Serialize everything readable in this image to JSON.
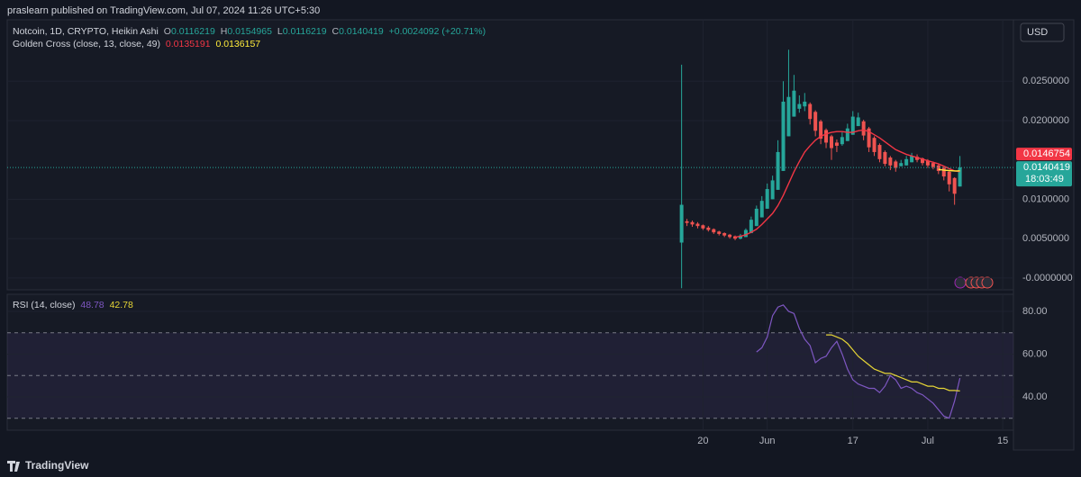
{
  "header": "praslearn published on TradingView.com, Jul 07, 2024 11:26 UTC+5:30",
  "currency": "USD",
  "footer": "TradingView",
  "chart_data": [
    {
      "type": "candlestick",
      "title": "Notcoin, 1D, CRYPTO, Heikin Ashi",
      "ohlc_labels": [
        "O",
        "H",
        "L",
        "C"
      ],
      "change": "+0.0024092 (+20.71%)",
      "up_color": "#26a69a",
      "down_color": "#ef5350",
      "x": [
        "2024-05-16",
        "2024-05-17",
        "2024-05-18",
        "2024-05-19",
        "2024-05-20",
        "2024-05-21",
        "2024-05-22",
        "2024-05-23",
        "2024-05-24",
        "2024-05-25",
        "2024-05-26",
        "2024-05-27",
        "2024-05-28",
        "2024-05-29",
        "2024-05-30",
        "2024-05-31",
        "2024-06-01",
        "2024-06-02",
        "2024-06-03",
        "2024-06-04",
        "2024-06-05",
        "2024-06-06",
        "2024-06-07",
        "2024-06-08",
        "2024-06-09",
        "2024-06-10",
        "2024-06-11",
        "2024-06-12",
        "2024-06-13",
        "2024-06-14",
        "2024-06-15",
        "2024-06-16",
        "2024-06-17",
        "2024-06-18",
        "2024-06-19",
        "2024-06-20",
        "2024-06-21",
        "2024-06-22",
        "2024-06-23",
        "2024-06-24",
        "2024-06-25",
        "2024-06-26",
        "2024-06-27",
        "2024-06-28",
        "2024-06-29",
        "2024-06-30",
        "2024-07-01",
        "2024-07-02",
        "2024-07-03",
        "2024-07-04",
        "2024-07-05",
        "2024-07-06",
        "2024-07-07"
      ],
      "open": [
        0.0045,
        0.0072,
        0.0071,
        0.0069,
        0.0067,
        0.0064,
        0.0062,
        0.0059,
        0.0057,
        0.0055,
        0.0053,
        0.005,
        0.0052,
        0.0057,
        0.0066,
        0.0077,
        0.0088,
        0.01,
        0.0112,
        0.0136,
        0.018,
        0.0205,
        0.0215,
        0.0218,
        0.0221,
        0.0211,
        0.0199,
        0.0188,
        0.018,
        0.0172,
        0.017,
        0.0174,
        0.0182,
        0.0193,
        0.0199,
        0.019,
        0.0178,
        0.0169,
        0.016,
        0.0153,
        0.0148,
        0.0142,
        0.0143,
        0.0147,
        0.0154,
        0.0152,
        0.0149,
        0.0146,
        0.0143,
        0.014,
        0.0135,
        0.0127,
        0.0116219
      ],
      "high": [
        0.0271,
        0.0075,
        0.0073,
        0.0071,
        0.0068,
        0.0066,
        0.0063,
        0.006,
        0.0058,
        0.0056,
        0.0054,
        0.0056,
        0.0063,
        0.0078,
        0.0092,
        0.0104,
        0.012,
        0.013,
        0.0175,
        0.025,
        0.029,
        0.0258,
        0.0232,
        0.0235,
        0.0223,
        0.0213,
        0.0201,
        0.019,
        0.0182,
        0.0176,
        0.0185,
        0.0196,
        0.0212,
        0.021,
        0.0201,
        0.0192,
        0.018,
        0.0171,
        0.0162,
        0.0155,
        0.015,
        0.015,
        0.0155,
        0.0159,
        0.0157,
        0.0153,
        0.0151,
        0.0148,
        0.0145,
        0.0141,
        0.0136,
        0.0128,
        0.0154965
      ],
      "low": [
        -0.0013,
        0.0066,
        0.0065,
        0.0063,
        0.0061,
        0.0059,
        0.0056,
        0.0054,
        0.0052,
        0.005,
        0.0048,
        0.0049,
        0.0052,
        0.0057,
        0.0066,
        0.0077,
        0.0088,
        0.01,
        0.0112,
        0.0136,
        0.018,
        0.0205,
        0.021,
        0.0212,
        0.0195,
        0.018,
        0.017,
        0.0165,
        0.015,
        0.016,
        0.0168,
        0.0174,
        0.0182,
        0.0193,
        0.0175,
        0.016,
        0.0155,
        0.0147,
        0.0142,
        0.0137,
        0.0135,
        0.0142,
        0.0143,
        0.0147,
        0.0147,
        0.0143,
        0.014,
        0.0138,
        0.0132,
        0.0124,
        0.011,
        0.0093,
        0.0116219
      ],
      "close": [
        0.0093,
        0.007,
        0.0068,
        0.0066,
        0.0063,
        0.0061,
        0.0058,
        0.0056,
        0.0054,
        0.0052,
        0.005,
        0.0054,
        0.0061,
        0.0074,
        0.0088,
        0.0098,
        0.0113,
        0.0124,
        0.016,
        0.0224,
        0.023,
        0.0238,
        0.0221,
        0.0224,
        0.0202,
        0.0187,
        0.0177,
        0.0172,
        0.0165,
        0.0168,
        0.0179,
        0.019,
        0.0205,
        0.0204,
        0.0181,
        0.0166,
        0.016,
        0.0151,
        0.0145,
        0.0143,
        0.014,
        0.0146,
        0.0151,
        0.0155,
        0.015,
        0.0146,
        0.0143,
        0.0141,
        0.0136,
        0.0129,
        0.0119,
        0.0107,
        0.0140419
      ],
      "indicator": {
        "title": "Golden Cross (close, 13, close, 49)",
        "lines": [
          {
            "color": "#f23645",
            "values": [
              null,
              null,
              null,
              null,
              null,
              null,
              null,
              null,
              null,
              null,
              0.0052,
              0.0053,
              0.0055,
              0.0058,
              0.0062,
              0.0068,
              0.0075,
              0.0082,
              0.0092,
              0.0105,
              0.012,
              0.0135,
              0.0148,
              0.016,
              0.0168,
              0.0175,
              0.018,
              0.0183,
              0.0185,
              0.0186,
              0.0186,
              0.0185,
              0.0185,
              0.0187,
              0.0188,
              0.0186,
              0.0182,
              0.0178,
              0.0173,
              0.0168,
              0.0163,
              0.016,
              0.0157,
              0.0155,
              0.0153,
              0.0151,
              0.0149,
              0.0147,
              0.0145,
              0.0142,
              0.0139,
              0.0136,
              0.0135191
            ]
          },
          {
            "color": "#ffeb3b",
            "values": [
              null,
              null,
              null,
              null,
              null,
              null,
              null,
              null,
              null,
              null,
              null,
              null,
              null,
              null,
              null,
              null,
              null,
              null,
              null,
              null,
              null,
              null,
              null,
              null,
              null,
              null,
              null,
              null,
              null,
              null,
              null,
              null,
              null,
              null,
              null,
              null,
              null,
              null,
              null,
              null,
              null,
              null,
              null,
              null,
              null,
              null,
              null,
              null,
              0.0138,
              0.0137,
              0.01365,
              0.0136,
              0.0136157
            ]
          }
        ]
      },
      "price_label": {
        "value": 0.0146754,
        "color": "#f23645"
      },
      "countdown": "18:03:49",
      "xlim": [
        "2024-01-11",
        "2024-07-17"
      ],
      "ylim": [
        -0.0015,
        0.0328
      ],
      "yticks": [
        {
          "value": 0,
          "label": "-0.0000000"
        },
        {
          "value": 0.005,
          "label": "0.0050000"
        },
        {
          "value": 0.01,
          "label": "0.0100000"
        },
        {
          "value": 0.02,
          "label": "0.0200000"
        },
        {
          "value": 0.025,
          "label": "0.0250000"
        }
      ],
      "grid": true
    },
    {
      "type": "line",
      "title": "RSI (14, close)",
      "x": [
        "2024-05-16",
        "2024-05-17",
        "2024-05-18",
        "2024-05-19",
        "2024-05-20",
        "2024-05-21",
        "2024-05-22",
        "2024-05-23",
        "2024-05-24",
        "2024-05-25",
        "2024-05-26",
        "2024-05-27",
        "2024-05-28",
        "2024-05-29",
        "2024-05-30",
        "2024-05-31",
        "2024-06-01",
        "2024-06-02",
        "2024-06-03",
        "2024-06-04",
        "2024-06-05",
        "2024-06-06",
        "2024-06-07",
        "2024-06-08",
        "2024-06-09",
        "2024-06-10",
        "2024-06-11",
        "2024-06-12",
        "2024-06-13",
        "2024-06-14",
        "2024-06-15",
        "2024-06-16",
        "2024-06-17",
        "2024-06-18",
        "2024-06-19",
        "2024-06-20",
        "2024-06-21",
        "2024-06-22",
        "2024-06-23",
        "2024-06-24",
        "2024-06-25",
        "2024-06-26",
        "2024-06-27",
        "2024-06-28",
        "2024-06-29",
        "2024-06-30",
        "2024-07-01",
        "2024-07-02",
        "2024-07-03",
        "2024-07-04",
        "2024-07-05",
        "2024-07-06",
        "2024-07-07"
      ],
      "series": [
        {
          "color": "#7e57c2",
          "values": [
            null,
            null,
            null,
            null,
            null,
            null,
            null,
            null,
            null,
            null,
            null,
            null,
            null,
            null,
            61,
            63,
            68,
            78,
            82,
            83,
            80,
            79,
            72,
            67,
            64,
            56,
            58,
            59,
            63,
            66,
            60,
            53,
            48,
            46,
            45,
            44,
            44,
            42,
            45,
            50,
            48,
            44,
            45,
            44,
            42,
            41,
            39,
            37,
            34,
            31,
            30,
            38,
            48.78
          ]
        },
        {
          "color": "#e6d536",
          "values": [
            null,
            null,
            null,
            null,
            null,
            null,
            null,
            null,
            null,
            null,
            null,
            null,
            null,
            null,
            null,
            null,
            null,
            null,
            null,
            null,
            null,
            null,
            null,
            null,
            null,
            null,
            null,
            69,
            69,
            68,
            67,
            65,
            62,
            59,
            57,
            55,
            53,
            52,
            51,
            51,
            50,
            49,
            48,
            47,
            47,
            46,
            45,
            45,
            44,
            44,
            43,
            43,
            42.78
          ]
        }
      ],
      "levels": [
        70,
        50,
        30
      ],
      "xlim": [
        "2024-01-11",
        "2024-07-17"
      ],
      "xticks": [
        {
          "value": "2024-05-20",
          "label": "20"
        },
        {
          "value": "2024-06-01",
          "label": "Jun"
        },
        {
          "value": "2024-06-17",
          "label": "17"
        },
        {
          "value": "2024-07-01",
          "label": "Jul"
        },
        {
          "value": "2024-07-15",
          "label": "15"
        }
      ],
      "ylim": [
        24.4,
        88
      ],
      "yticks": [
        {
          "value": 40,
          "label": "40.00"
        },
        {
          "value": 60,
          "label": "60.00"
        },
        {
          "value": 80,
          "label": "80.00"
        }
      ],
      "grid": true
    }
  ]
}
